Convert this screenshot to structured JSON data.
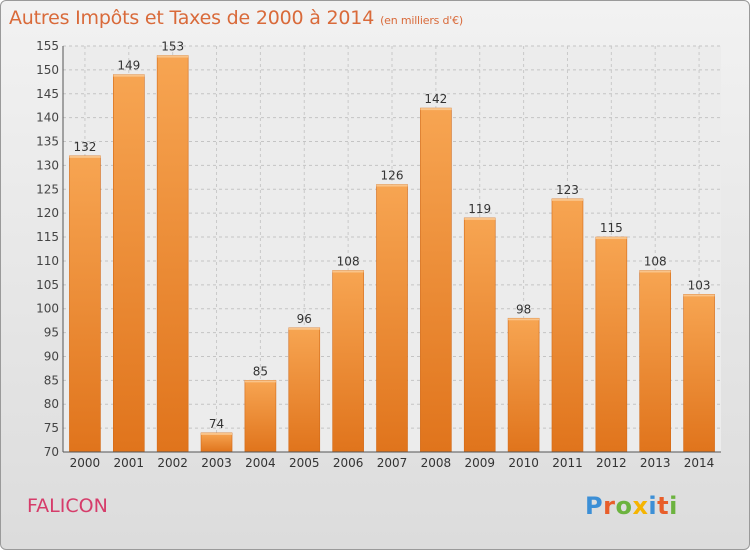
{
  "title": "Autres Impôts et Taxes de 2000 à 2014",
  "unit_note": "(en milliers d'€)",
  "place_name": "FALICON",
  "logo": {
    "letters": [
      "P",
      "r",
      "o",
      "x",
      "i",
      "t",
      "i"
    ],
    "colors": [
      "#3c8fd6",
      "#e85e2a",
      "#6cb33f",
      "#f5b400",
      "#3c8fd6",
      "#e85e2a",
      "#6cb33f"
    ]
  },
  "colors": {
    "bar_top": "#f7a552",
    "bar_bottom": "#e0741c",
    "title": "#d96a3a",
    "place": "#d63c6a"
  },
  "chart_data": {
    "type": "bar",
    "title": "Autres Impôts et Taxes de 2000 à 2014",
    "xlabel": "",
    "ylabel": "",
    "categories": [
      "2000",
      "2001",
      "2002",
      "2003",
      "2004",
      "2005",
      "2006",
      "2007",
      "2008",
      "2009",
      "2010",
      "2011",
      "2012",
      "2013",
      "2014"
    ],
    "values": [
      132,
      149,
      153,
      74,
      85,
      96,
      108,
      126,
      142,
      119,
      98,
      123,
      115,
      108,
      103
    ],
    "ylim": [
      70,
      155
    ],
    "yticks": [
      70,
      75,
      80,
      85,
      90,
      95,
      100,
      105,
      110,
      115,
      120,
      125,
      130,
      135,
      140,
      145,
      150,
      155
    ],
    "grid": true,
    "data_labels": true
  }
}
